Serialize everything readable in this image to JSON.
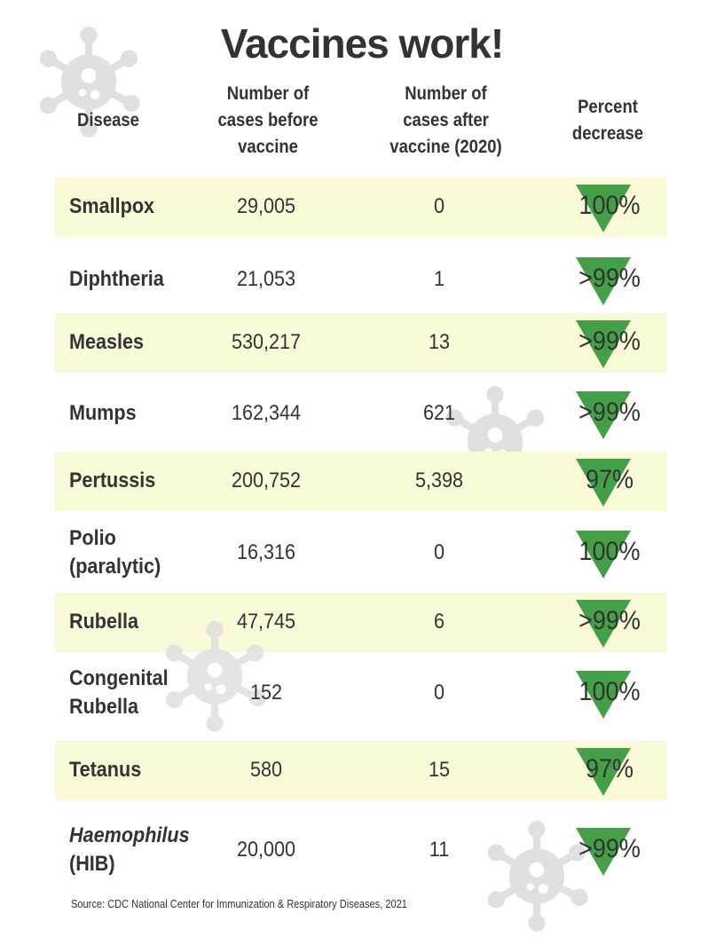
{
  "title": "Vaccines work!",
  "headers": {
    "disease": "Disease",
    "before": [
      "Number of",
      "cases before",
      "vaccine"
    ],
    "after": [
      "Number of",
      "cases after",
      "vaccine (2020)"
    ],
    "percent": [
      "Percent",
      "decrease"
    ]
  },
  "rows": [
    {
      "disease": [
        "Smallpox"
      ],
      "before": "29,005",
      "after": "0",
      "percent": "100%"
    },
    {
      "disease": [
        "Diphtheria"
      ],
      "before": "21,053",
      "after": "1",
      "percent": ">99%"
    },
    {
      "disease": [
        "Measles"
      ],
      "before": "530,217",
      "after": "13",
      "percent": ">99%"
    },
    {
      "disease": [
        "Mumps"
      ],
      "before": "162,344",
      "after": "621",
      "percent": ">99%"
    },
    {
      "disease": [
        "Pertussis"
      ],
      "before": "200,752",
      "after": "5,398",
      "percent": "97%"
    },
    {
      "disease": [
        "Polio",
        "(paralytic)"
      ],
      "before": "16,316",
      "after": "0",
      "percent": "100%"
    },
    {
      "disease": [
        "Rubella"
      ],
      "before": "47,745",
      "after": "6",
      "percent": ">99%"
    },
    {
      "disease": [
        "Congenital",
        "Rubella"
      ],
      "before": "152",
      "after": "0",
      "percent": "100%"
    },
    {
      "disease": [
        "Tetanus"
      ],
      "before": "580",
      "after": "15",
      "percent": "97%"
    },
    {
      "disease": [
        "Haemophilus",
        "(HIB)"
      ],
      "before": "20,000",
      "after": "11",
      "percent": ">99%"
    }
  ],
  "source": "Source: CDC National Center for Immunization & Respiratory Diseases, 2021",
  "colors": {
    "row_shade": "#fafad8",
    "triangle": "#43a047",
    "virus": "#e0e0e0",
    "text": "#333333"
  },
  "icons": {
    "decoration": "virus-icon",
    "decrease": "down-triangle-icon"
  }
}
